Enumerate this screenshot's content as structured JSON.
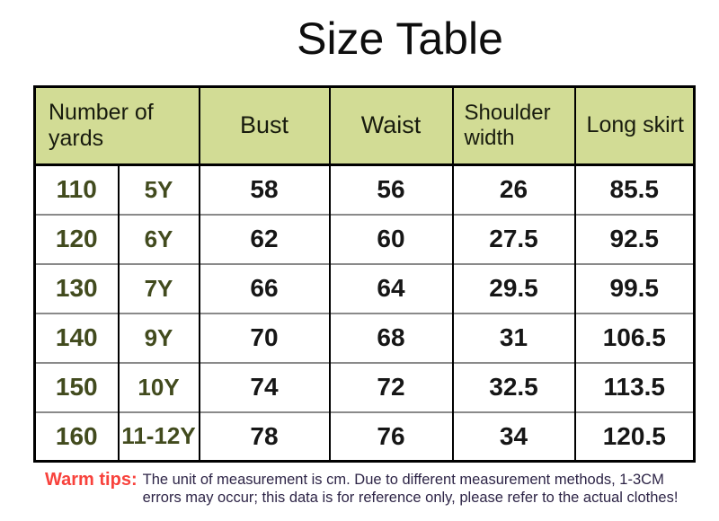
{
  "title": "Size Table",
  "table": {
    "header": {
      "col_yards": "Number of yards",
      "col_bust": "Bust",
      "col_waist": "Waist",
      "col_shoulder": "Shoulder width",
      "col_skirt": "Long skirt"
    },
    "rows": [
      {
        "size": "110",
        "age": "5Y",
        "bust": "58",
        "waist": "56",
        "shoulder": "26",
        "skirt": "85.5"
      },
      {
        "size": "120",
        "age": "6Y",
        "bust": "62",
        "waist": "60",
        "shoulder": "27.5",
        "skirt": "92.5"
      },
      {
        "size": "130",
        "age": "7Y",
        "bust": "66",
        "waist": "64",
        "shoulder": "29.5",
        "skirt": "99.5"
      },
      {
        "size": "140",
        "age": "9Y",
        "bust": "70",
        "waist": "68",
        "shoulder": "31",
        "skirt": "106.5"
      },
      {
        "size": "150",
        "age": "10Y",
        "bust": "74",
        "waist": "72",
        "shoulder": "32.5",
        "skirt": "113.5"
      },
      {
        "size": "160",
        "age": "11-12Y",
        "bust": "78",
        "waist": "76",
        "shoulder": "34",
        "skirt": "120.5"
      }
    ]
  },
  "tips": {
    "label": "Warm tips:",
    "text": "The unit of measurement is cm. Due to different measurement methods, 1-3CM errors may occur; this data is for reference only, please refer to the actual clothes!"
  },
  "colors": {
    "header_background": "#d2dc95",
    "size_text": "#424b1e",
    "warm_tips_label": "#f8423c",
    "tips_text": "#2e2547",
    "row_divider": "#8a8a8a",
    "table_border": "#000000"
  }
}
